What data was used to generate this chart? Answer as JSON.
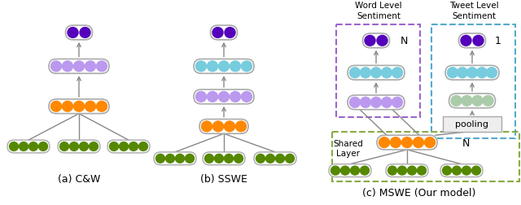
{
  "bg_color": "#ffffff",
  "dark_purple": "#5500bb",
  "light_purple": "#bb99ee",
  "orange": "#ff8800",
  "green": "#558800",
  "cyan": "#77ccdd",
  "light_green": "#aaccaa",
  "arrow_color": "#888888",
  "dashed_purple": "#9966cc",
  "dashed_cyan": "#55aacc",
  "dashed_green": "#88aa44",
  "title_a": "(a) C&W",
  "title_b": "(b) SSWE",
  "title_c": "(c) MSWE (Our model)",
  "label_word": "Word Level\nSentiment",
  "label_tweet": "Tweet Level\nSentiment",
  "label_shared": "Shared\nLayer",
  "label_pooling": "pooling",
  "label_N1": "N",
  "label_N2": "N",
  "label_1": "1"
}
